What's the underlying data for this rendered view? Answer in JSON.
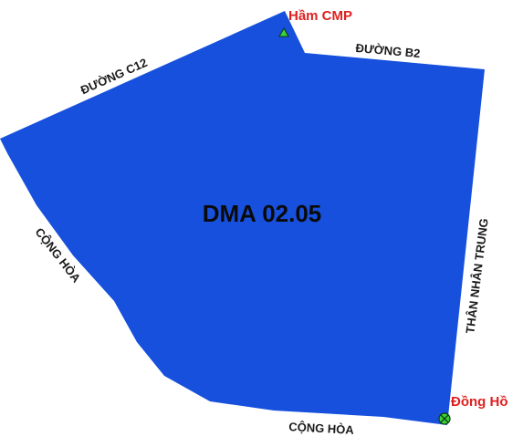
{
  "map": {
    "zone": {
      "name": "DMA 02.05",
      "fill_color": "#1650dd"
    },
    "roads": {
      "c12": "ĐƯỜNG C12",
      "b2": "ĐƯỜNG B2",
      "cong_hoa_west": "CỘNG HÒA",
      "cong_hoa_south": "CỘNG HÒA",
      "than_nhan_trung": "THÂN NHÂN TRUNG"
    },
    "points": {
      "ham_cmp": {
        "label": "Hầm CMP",
        "label_color": "#e02020",
        "symbol": "triangle-icon",
        "symbol_color": "#3dd23d"
      },
      "dong_ho": {
        "label": "Đồng Hồ",
        "label_color": "#e02020",
        "symbol": "meter-crossed-circle-icon",
        "symbol_color": "#3dd23d"
      }
    }
  }
}
